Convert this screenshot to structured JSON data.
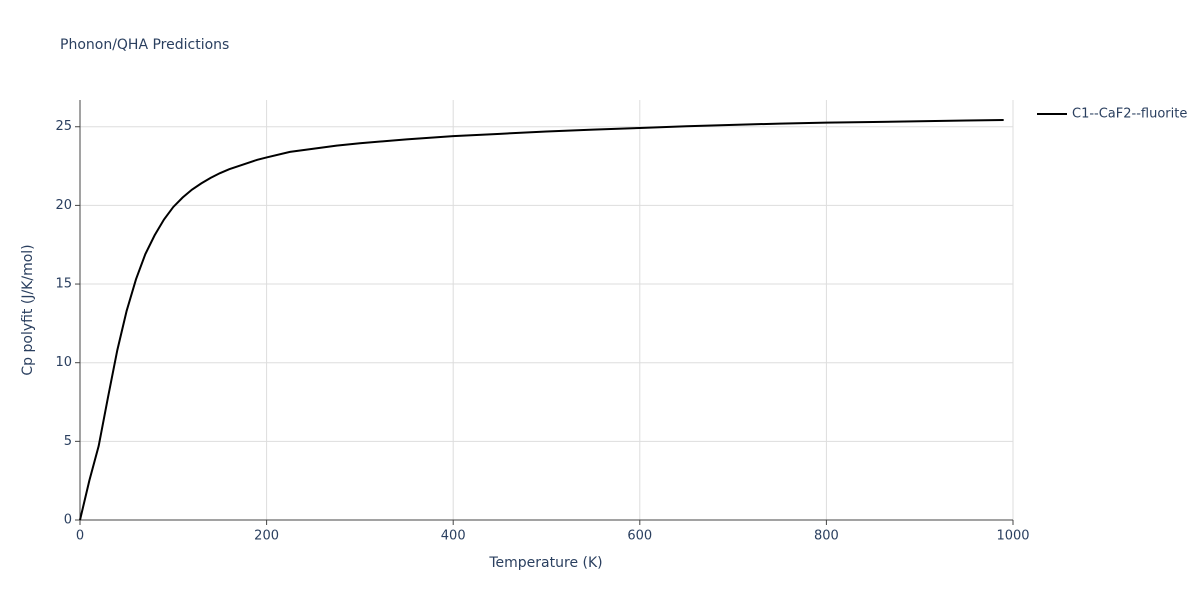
{
  "chart_data": {
    "type": "line",
    "title": "Phonon/QHA Predictions",
    "x_label": "Temperature (K)",
    "y_label": "Cp polyfit (J/K/mol)",
    "x": [
      0,
      10,
      20,
      30,
      40,
      50,
      60,
      70,
      80,
      90,
      100,
      110,
      120,
      130,
      140,
      150,
      160,
      170,
      180,
      190,
      200,
      225,
      250,
      275,
      300,
      350,
      400,
      450,
      500,
      550,
      600,
      650,
      700,
      750,
      800,
      850,
      900,
      950,
      990
    ],
    "series": [
      {
        "name": "C1--CaF2--fluorite",
        "color": "#000000",
        "values": [
          0,
          2.5,
          4.7,
          7.8,
          10.8,
          13.3,
          15.3,
          16.9,
          18.1,
          19.1,
          19.9,
          20.5,
          21.0,
          21.4,
          21.75,
          22.05,
          22.3,
          22.5,
          22.7,
          22.9,
          23.05,
          23.4,
          23.6,
          23.8,
          23.95,
          24.2,
          24.4,
          24.55,
          24.7,
          24.82,
          24.92,
          25.03,
          25.12,
          25.2,
          25.26,
          25.3,
          25.35,
          25.4,
          25.43
        ]
      }
    ],
    "xlim": [
      0,
      1000
    ],
    "xticks": [
      0,
      200,
      400,
      600,
      800,
      1000
    ],
    "ylim": [
      0,
      26.7
    ],
    "yticks": [
      0,
      5,
      10,
      15,
      20,
      25
    ],
    "grid": true
  }
}
